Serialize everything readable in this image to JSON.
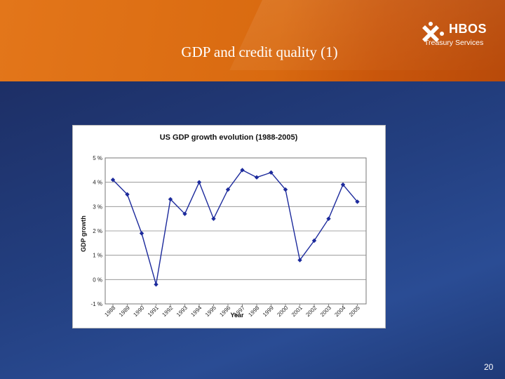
{
  "slide": {
    "title": "GDP and credit quality (1)",
    "page_number": "20",
    "brand": {
      "name": "HBOS",
      "sub": "Treasury Services"
    }
  },
  "colors": {
    "header": "#d96a10",
    "background": "#1f3a78",
    "series": "#1c2a9c"
  },
  "chart_data": {
    "type": "line",
    "title": "US GDP growth evolution (1988-2005)",
    "xlabel": "Year",
    "ylabel": "GDP growth",
    "x": [
      "1988",
      "1989",
      "1990",
      "1991",
      "1992",
      "1993",
      "1994",
      "1995",
      "1996",
      "1997",
      "1998",
      "1999",
      "2000",
      "2001",
      "2002",
      "2003",
      "2004",
      "2005"
    ],
    "yticks": [
      "-1 %",
      "0 %",
      "1 %",
      "2 %",
      "3 %",
      "4 %",
      "5 %"
    ],
    "ylim": [
      -1,
      5
    ],
    "grid": true,
    "series": [
      {
        "values": [
          4.1,
          3.5,
          1.9,
          -0.2,
          3.3,
          2.7,
          4.0,
          2.5,
          3.7,
          4.5,
          4.2,
          4.4,
          3.7,
          0.8,
          1.6,
          2.5,
          3.9,
          3.2
        ]
      }
    ]
  }
}
